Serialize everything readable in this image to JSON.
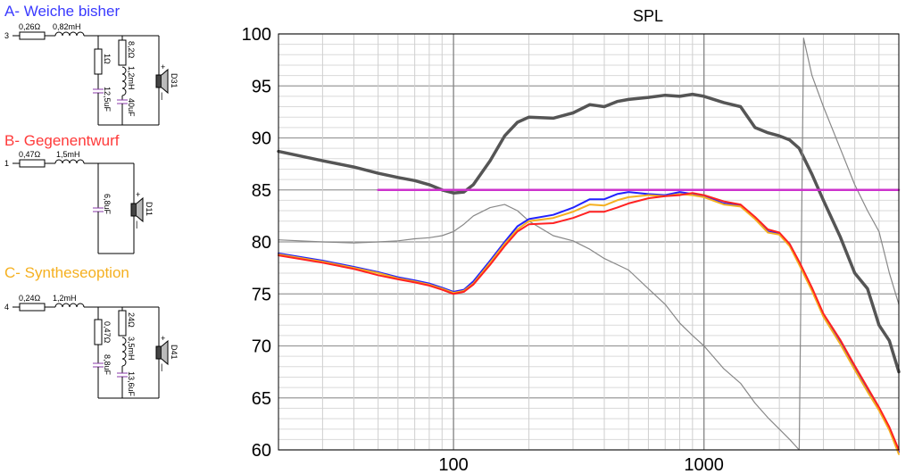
{
  "circuits": [
    {
      "title": "A- Weiche bisher",
      "color": "#3a3aff",
      "node": "3",
      "r_series": "0,26Ω",
      "l_series": "0,82mH",
      "r_shunt": "1Ω",
      "c_shunt": "12,5uF",
      "rlc_r": "8,2Ω",
      "rlc_l": "1,2mH",
      "rlc_c": "40uF",
      "driver": "D31"
    },
    {
      "title": "B- Gegenentwurf",
      "color": "#ff3a3a",
      "node": "1",
      "r_series": "0,47Ω",
      "l_series": "1,5mH",
      "c_shunt": "6,8uF",
      "driver": "D11"
    },
    {
      "title": "C- Syntheseoption",
      "color": "#f5b020",
      "node": "4",
      "r_series": "0,24Ω",
      "l_series": "1,2mH",
      "r_shunt": "0,47Ω",
      "c_shunt": "8,8uF",
      "rlc_r": "24Ω",
      "rlc_l": "3,5mH",
      "rlc_c": "13,6uF",
      "driver": "D41"
    }
  ],
  "chart_data": {
    "type": "line",
    "title": "SPL",
    "xlabel": "",
    "ylabel": "",
    "x_scale": "log",
    "xlim": [
      20,
      6000
    ],
    "ylim": [
      60,
      100
    ],
    "x_ticks": [
      100,
      1000
    ],
    "x_tick_labels": [
      "100",
      "1000"
    ],
    "y_ticks": [
      100,
      95,
      90,
      85,
      80,
      75,
      70,
      65,
      60
    ],
    "y_tick_labels": [
      "100",
      "95",
      "90",
      "85",
      "80",
      "75",
      "70",
      "65",
      "60"
    ],
    "grid": true,
    "series": [
      {
        "color": "#555555",
        "width": 3.5,
        "x": [
          20,
          30,
          40,
          50,
          60,
          70,
          80,
          90,
          100,
          110,
          120,
          140,
          160,
          180,
          200,
          250,
          300,
          350,
          400,
          450,
          500,
          600,
          700,
          800,
          900,
          1000,
          1200,
          1400,
          1600,
          1800,
          2000,
          2200,
          2400,
          2700,
          3000,
          3500,
          4000,
          4500,
          5000,
          5500,
          6000
        ],
        "y": [
          88.7,
          87.8,
          87.2,
          86.6,
          86.2,
          85.9,
          85.5,
          85.0,
          84.7,
          84.8,
          85.5,
          87.8,
          90.2,
          91.5,
          92.0,
          91.9,
          92.4,
          93.2,
          93.0,
          93.5,
          93.7,
          93.9,
          94.1,
          94.0,
          94.2,
          94.0,
          93.4,
          93.0,
          91.0,
          90.5,
          90.2,
          89.8,
          89.0,
          86.5,
          84.0,
          80.5,
          77.0,
          75.5,
          72.0,
          70.5,
          67.5
        ]
      },
      {
        "color": "#888888",
        "width": 1.2,
        "x": [
          20,
          30,
          40,
          50,
          60,
          70,
          80,
          90,
          100,
          110,
          120,
          140,
          160,
          180,
          200,
          250,
          300,
          350,
          400,
          500,
          600,
          700,
          800,
          900,
          1000,
          1200,
          1400,
          1600,
          1800,
          2000,
          2200,
          2400,
          2500,
          2700,
          3000,
          3500,
          4000,
          4500,
          5000,
          5500,
          6000
        ],
        "y": [
          80.2,
          80.0,
          79.9,
          80.0,
          80.1,
          80.3,
          80.4,
          80.6,
          81.0,
          81.7,
          82.5,
          83.3,
          83.6,
          83.0,
          82.0,
          80.6,
          80.1,
          79.3,
          78.4,
          77.3,
          75.5,
          74.0,
          72.2,
          71.0,
          70.0,
          67.8,
          66.4,
          64.5,
          63.1,
          62.0,
          61.0,
          60.0,
          99.6,
          96.0,
          93.0,
          89.0,
          85.5,
          83.0,
          81.0,
          77.0,
          74.0
        ]
      },
      {
        "color": "#cc33cc",
        "width": 2.5,
        "x": [
          50,
          6000
        ],
        "y": [
          85.0,
          85.0
        ]
      },
      {
        "color": "#2222ff",
        "width": 2.0,
        "x": [
          20,
          30,
          40,
          50,
          60,
          70,
          80,
          90,
          100,
          110,
          120,
          140,
          160,
          180,
          200,
          250,
          300,
          350,
          400,
          450,
          500,
          600,
          700,
          800,
          900,
          1000,
          1200,
          1400,
          1600,
          1800,
          2000,
          2200,
          2400,
          2700,
          3000,
          3500,
          4000,
          4500,
          5000,
          5500,
          6000
        ],
        "y": [
          78.9,
          78.2,
          77.6,
          77.1,
          76.6,
          76.3,
          76.0,
          75.6,
          75.2,
          75.4,
          76.2,
          78.2,
          80.0,
          81.5,
          82.2,
          82.6,
          83.3,
          84.1,
          84.1,
          84.6,
          84.8,
          84.6,
          84.5,
          84.8,
          84.6,
          84.4,
          83.7,
          83.5,
          82.3,
          81.0,
          80.8,
          79.8,
          78.0,
          75.5,
          73.0,
          70.5,
          68.0,
          65.8,
          64.0,
          62.0,
          59.8
        ]
      },
      {
        "color": "#f5b020",
        "width": 2.0,
        "x": [
          20,
          30,
          40,
          50,
          60,
          70,
          80,
          90,
          100,
          110,
          120,
          140,
          160,
          180,
          200,
          250,
          300,
          350,
          400,
          450,
          500,
          600,
          700,
          800,
          900,
          1000,
          1200,
          1400,
          1600,
          1800,
          2000,
          2200,
          2400,
          2700,
          3000,
          3500,
          4000,
          4500,
          5000,
          5500,
          6000
        ],
        "y": [
          78.8,
          78.1,
          77.5,
          77.0,
          76.5,
          76.2,
          75.9,
          75.5,
          75.1,
          75.3,
          76.0,
          78.0,
          79.8,
          81.2,
          82.0,
          82.3,
          82.9,
          83.6,
          83.5,
          84.0,
          84.3,
          84.5,
          84.4,
          84.6,
          84.5,
          84.3,
          83.6,
          83.4,
          82.2,
          80.9,
          80.7,
          79.6,
          77.8,
          75.3,
          72.8,
          70.2,
          67.7,
          65.6,
          63.8,
          61.9,
          59.6
        ]
      },
      {
        "color": "#ff2222",
        "width": 2.0,
        "x": [
          20,
          30,
          40,
          50,
          60,
          70,
          80,
          90,
          100,
          110,
          120,
          140,
          160,
          180,
          200,
          250,
          300,
          350,
          400,
          450,
          500,
          600,
          700,
          800,
          900,
          1000,
          1200,
          1400,
          1600,
          1800,
          2000,
          2200,
          2400,
          2700,
          3000,
          3500,
          4000,
          4500,
          5000,
          5500,
          6000
        ],
        "y": [
          78.7,
          78.0,
          77.4,
          76.8,
          76.4,
          76.1,
          75.8,
          75.4,
          75.0,
          75.2,
          75.9,
          77.8,
          79.6,
          81.0,
          81.7,
          81.8,
          82.3,
          82.9,
          82.9,
          83.3,
          83.7,
          84.2,
          84.4,
          84.5,
          84.7,
          84.5,
          83.9,
          83.6,
          82.4,
          81.2,
          80.9,
          79.8,
          78.1,
          75.6,
          73.1,
          70.6,
          68.1,
          66.0,
          64.1,
          62.2,
          60.0
        ]
      }
    ]
  }
}
